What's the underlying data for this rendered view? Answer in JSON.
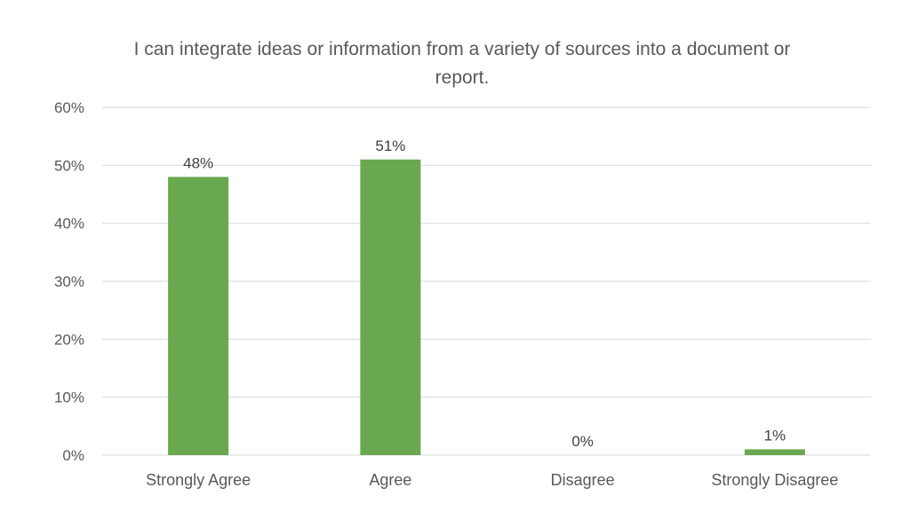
{
  "chart_data": {
    "type": "bar",
    "title": "I can integrate ideas or information from a variety of sources into a document or report.",
    "categories": [
      "Strongly Agree",
      "Agree",
      "Disagree",
      "Strongly Disagree"
    ],
    "values": [
      48,
      51,
      0,
      1
    ],
    "data_labels": [
      "48%",
      "51%",
      "0%",
      "1%"
    ],
    "ylim": [
      0,
      60
    ],
    "yticks": [
      0,
      10,
      20,
      30,
      40,
      50,
      60
    ],
    "ytick_labels": [
      "0%",
      "10%",
      "20%",
      "30%",
      "40%",
      "50%",
      "60%"
    ],
    "xlabel": "",
    "ylabel": "",
    "grid": true,
    "legend": "none",
    "bar_color": "#6aa84f",
    "grid_color": "#d9d9d9"
  }
}
